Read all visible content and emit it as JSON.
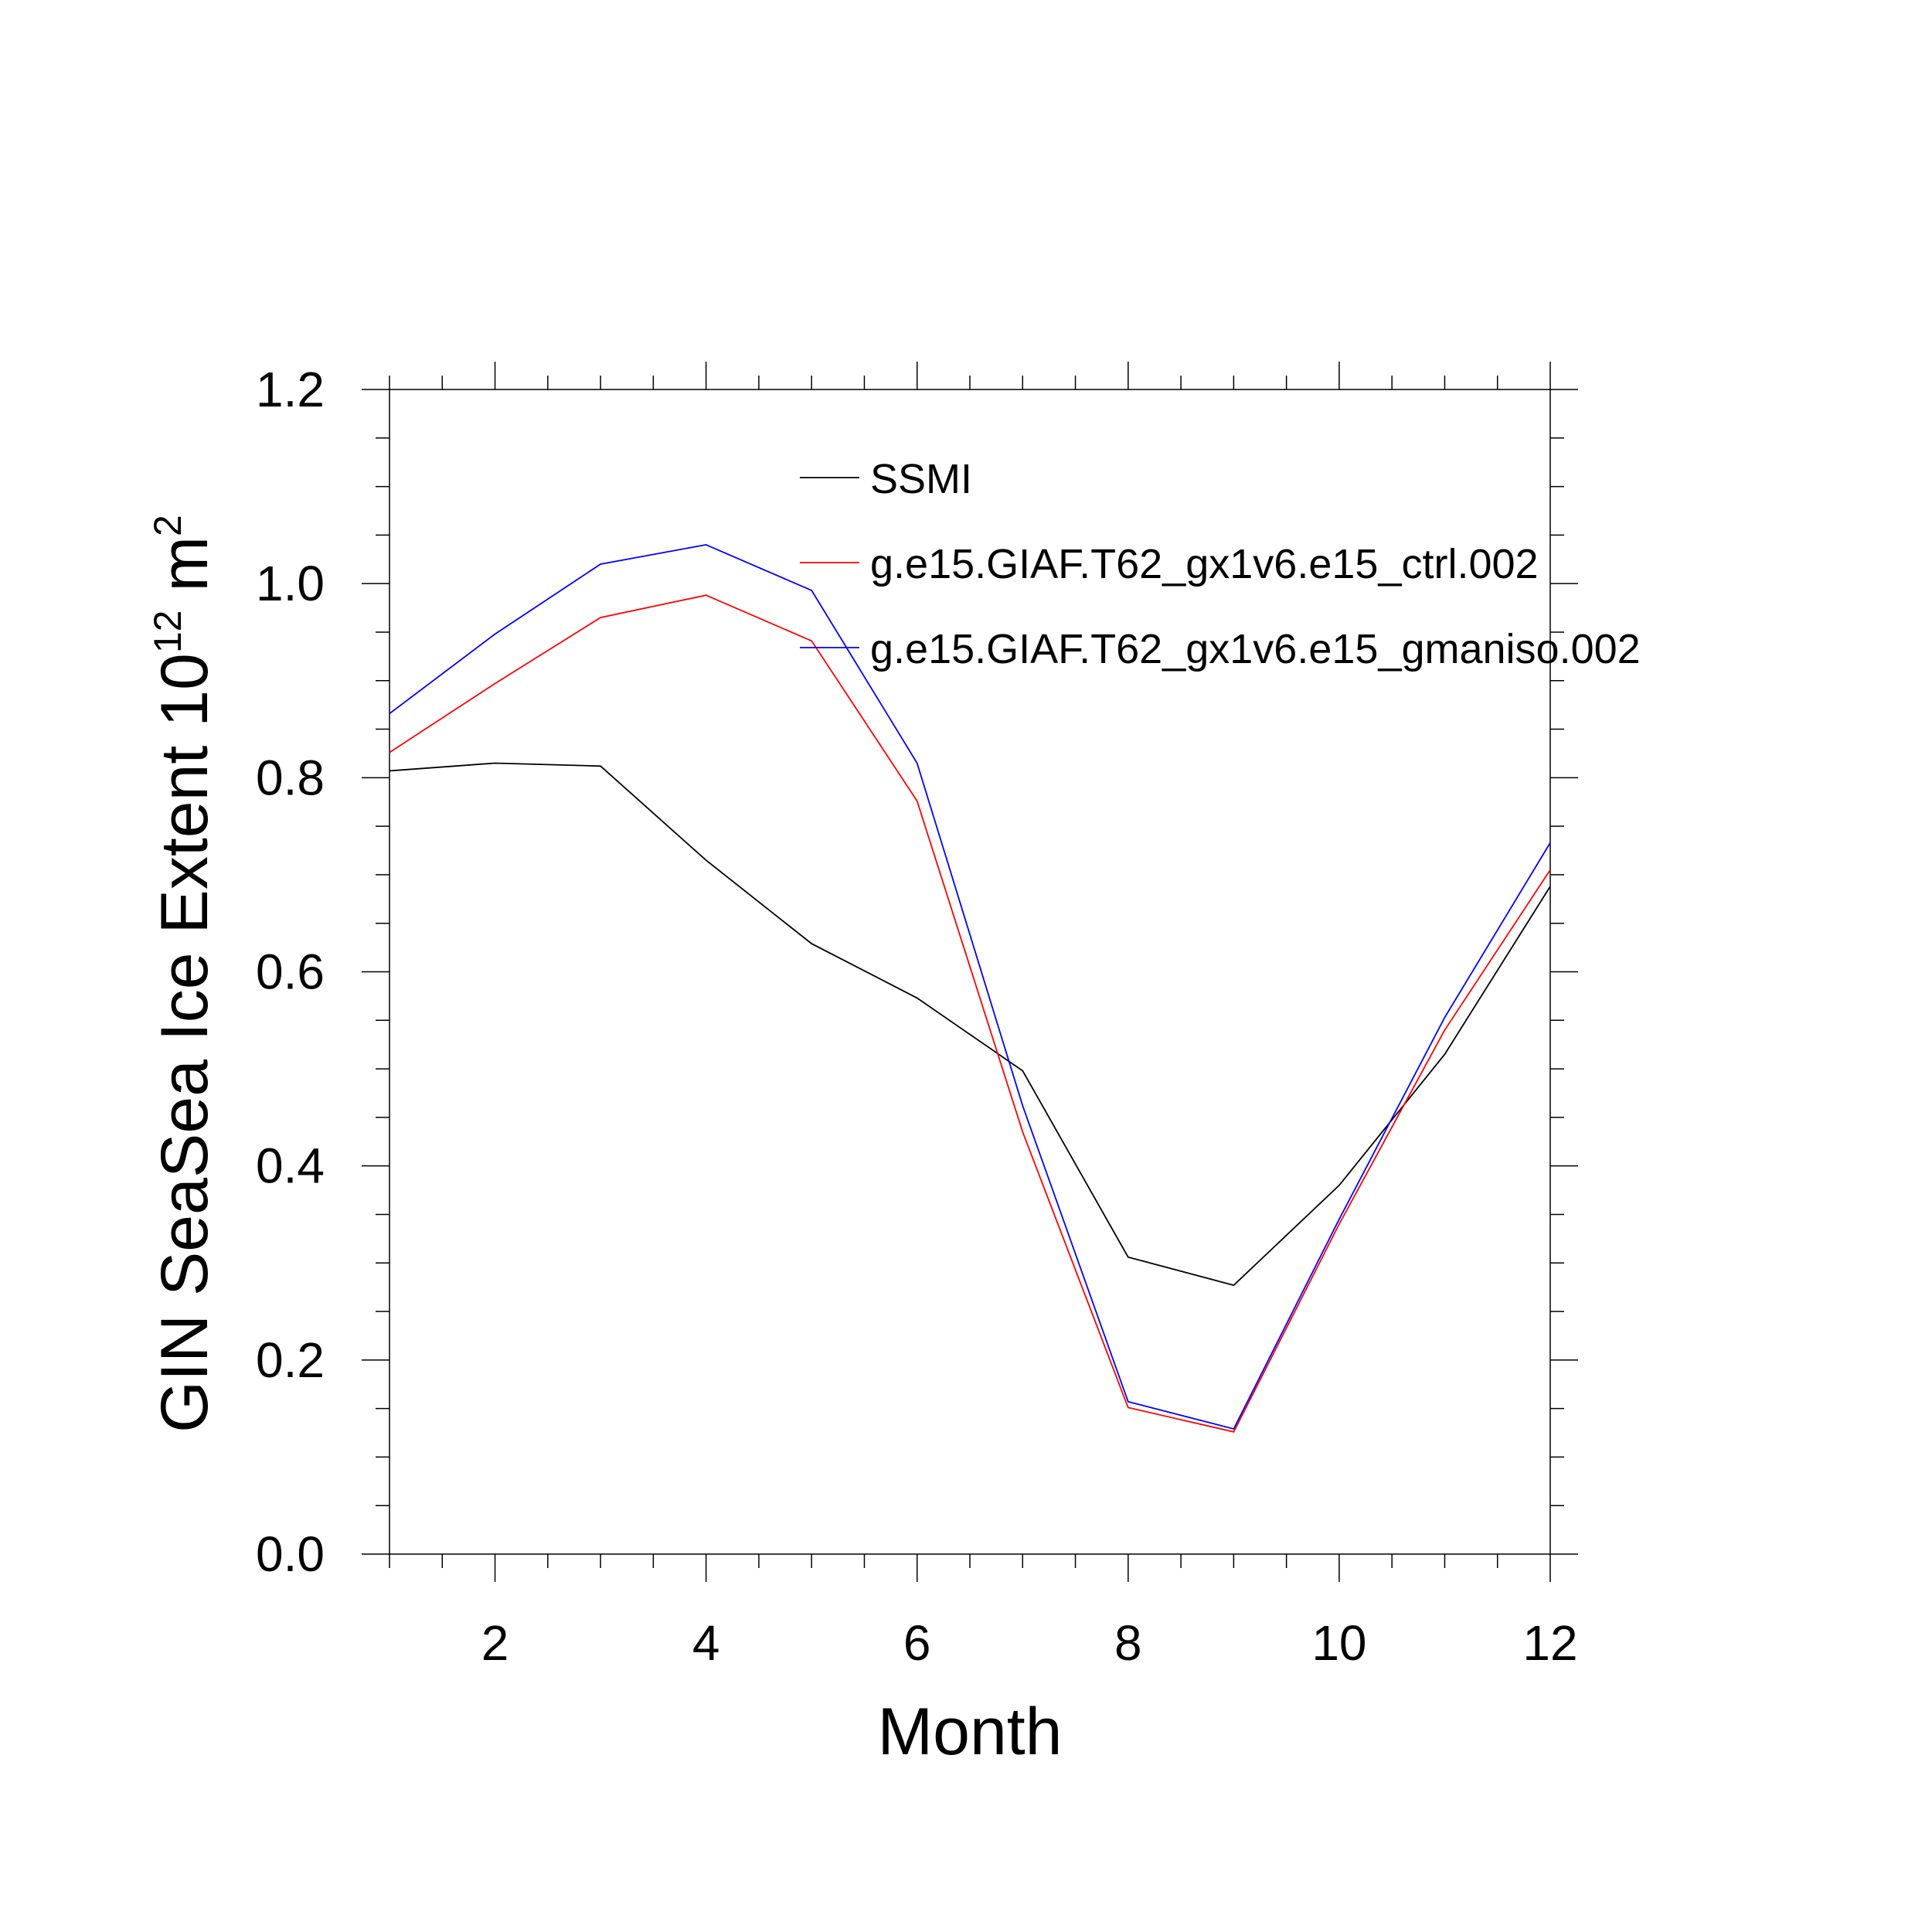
{
  "chart_data": {
    "type": "line",
    "xlabel": "Month",
    "ylabel_main": "GIN SeaSea Ice Extent 10",
    "ylabel_exp": "12",
    "ylabel_unit": " m",
    "ylabel_unit_exp": "2",
    "xlim": [
      1,
      12
    ],
    "ylim": [
      0.0,
      1.2
    ],
    "xticks": [
      2,
      4,
      6,
      8,
      10,
      12
    ],
    "xtick_labels": [
      "2",
      "4",
      "6",
      "8",
      "10",
      "12"
    ],
    "yticks": [
      0.0,
      0.2,
      0.4,
      0.6,
      0.8,
      1.0,
      1.2
    ],
    "ytick_labels": [
      "0.0",
      "0.2",
      "0.4",
      "0.6",
      "0.8",
      "1.0",
      "1.2"
    ],
    "grid": false,
    "legend_position": "top-center",
    "x": [
      1,
      2,
      3,
      4,
      5,
      6,
      7,
      8,
      9,
      10,
      11,
      12
    ],
    "series": [
      {
        "name": "SSMI",
        "color": "#000000",
        "values": [
          0.807,
          0.815,
          0.812,
          0.715,
          0.629,
          0.573,
          0.498,
          0.306,
          0.277,
          0.38,
          0.515,
          0.688
        ]
      },
      {
        "name": "g.e15.GIAF.T62_gx1v6.e15_ctrl.002",
        "color": "#ff0000",
        "values": [
          0.826,
          0.897,
          0.965,
          0.988,
          0.941,
          0.776,
          0.435,
          0.151,
          0.126,
          0.34,
          0.54,
          0.705
        ]
      },
      {
        "name": "g.e15.GIAF.T62_gx1v6.e15_gmaniso.002",
        "color": "#0000ff",
        "values": [
          0.866,
          0.948,
          1.02,
          1.04,
          0.993,
          0.815,
          0.462,
          0.157,
          0.129,
          0.345,
          0.553,
          0.733
        ]
      }
    ]
  }
}
